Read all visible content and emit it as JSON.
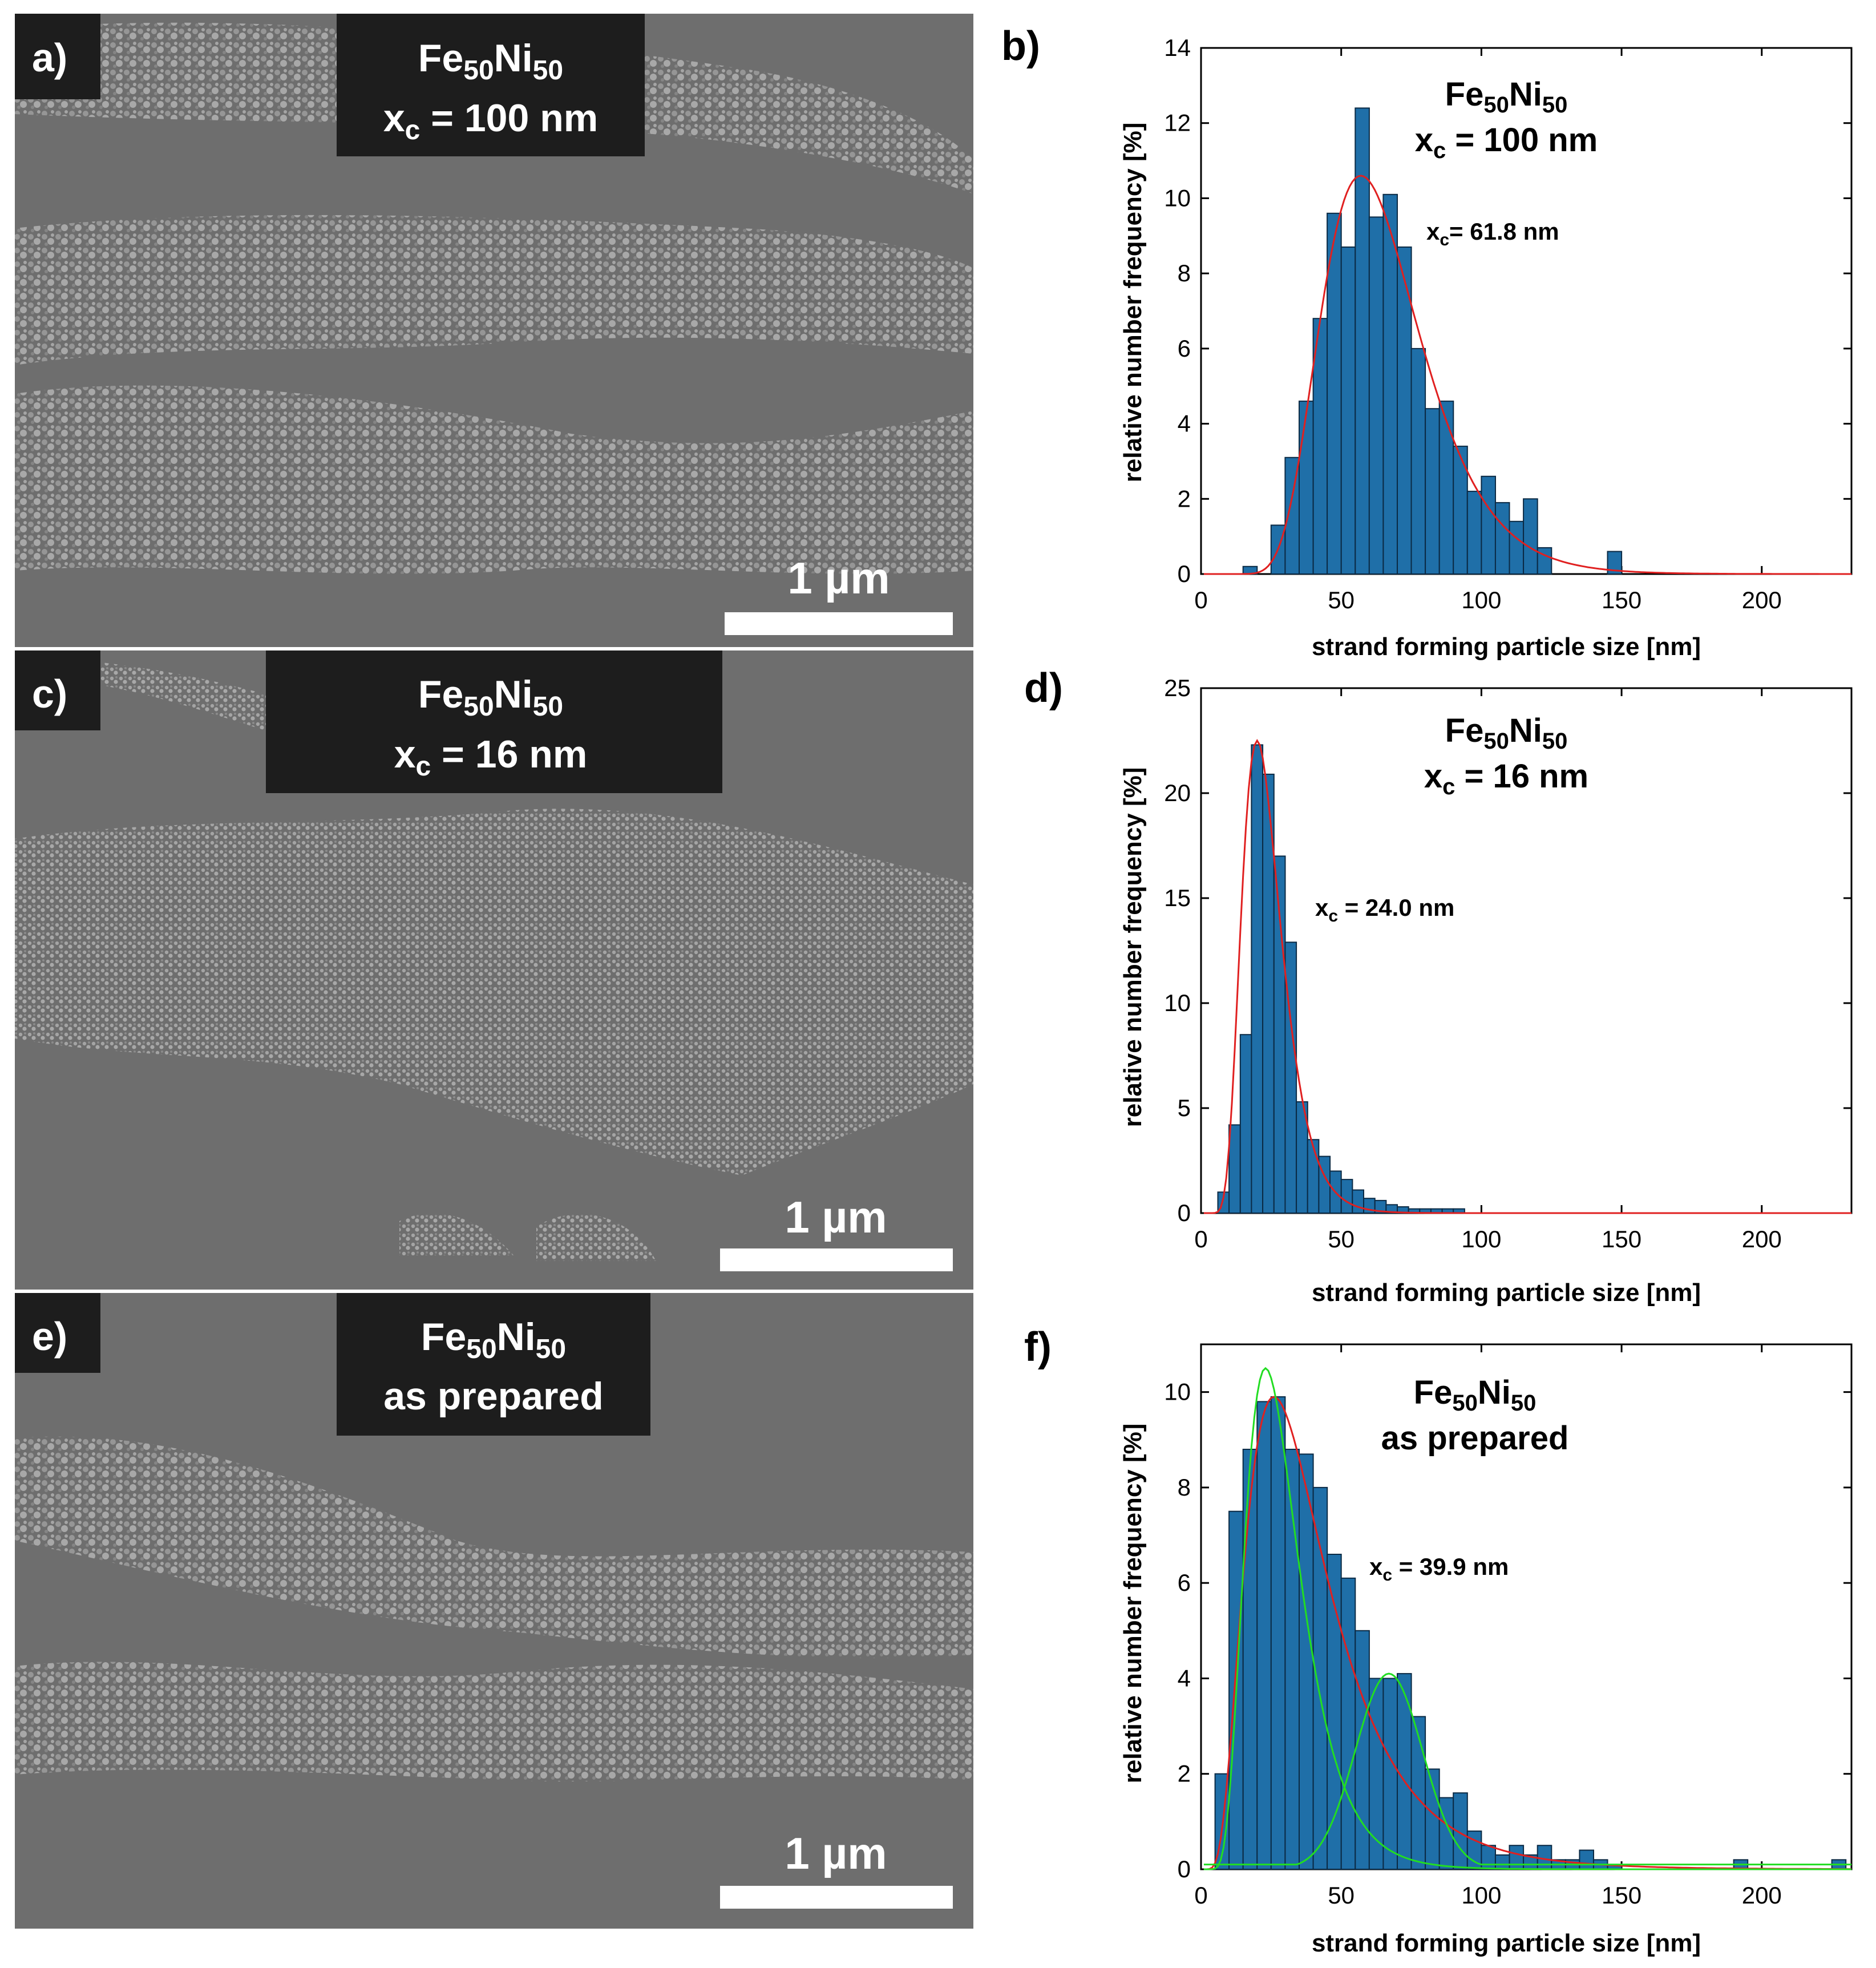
{
  "sem_panels": [
    {
      "letter": "a)",
      "material": "Fe",
      "sub1": "50",
      "element2": "Ni",
      "sub2": "50",
      "line2_var": "x",
      "line2_sub": "c",
      "line2_rest": " = 100 nm",
      "scale_bar": "1 µm"
    },
    {
      "letter": "c)",
      "material": "Fe",
      "sub1": "50",
      "element2": "Ni",
      "sub2": "50",
      "line2_var": "x",
      "line2_sub": "c",
      "line2_rest": " = 16 nm",
      "scale_bar": "1 µm"
    },
    {
      "letter": "e)",
      "material": "Fe",
      "sub1": "50",
      "element2": "Ni",
      "sub2": "50",
      "line2_text": "as prepared",
      "scale_bar": "1 µm"
    }
  ],
  "chart_data": [
    {
      "letter": "b)",
      "type": "bar",
      "title_el1": "Fe",
      "title_sub1": "50",
      "title_el2": "Ni",
      "title_sub2": "50",
      "title_line2_var": "x",
      "title_line2_sub": "c",
      "title_line2_rest": " = 100 nm",
      "annotation_var": "x",
      "annotation_sub": "c",
      "annotation_rest": "= 61.8 nm",
      "xlabel": "strand forming particle size [nm]",
      "ylabel": "relative number frequency [%]",
      "xlim": [
        0,
        232
      ],
      "ylim": [
        0,
        14
      ],
      "xticks": [
        0,
        50,
        100,
        150,
        200
      ],
      "yticks": [
        0,
        2,
        4,
        6,
        8,
        10,
        12,
        14
      ],
      "bin_width": 5,
      "bin_centers": [
        17.5,
        27.5,
        32.5,
        37.5,
        42.5,
        47.5,
        52.5,
        57.5,
        62.5,
        67.5,
        72.5,
        77.5,
        82.5,
        87.5,
        92.5,
        97.5,
        102.5,
        107.5,
        112.5,
        117.5,
        122.5,
        147.5
      ],
      "values": [
        0.2,
        1.3,
        3.1,
        4.6,
        6.8,
        9.6,
        8.7,
        12.4,
        9.5,
        10.1,
        8.7,
        6.0,
        4.4,
        4.6,
        3.4,
        2.2,
        2.6,
        1.9,
        1.4,
        2.0,
        0.7,
        0.6
      ],
      "fit_curves": [
        {
          "color": "#e02020",
          "kind": "lognormal",
          "mode": 57,
          "sigma": 0.31,
          "peak": 10.6
        }
      ]
    },
    {
      "letter": "d)",
      "type": "bar",
      "title_el1": "Fe",
      "title_sub1": "50",
      "title_el2": "Ni",
      "title_sub2": "50",
      "title_line2_var": "x",
      "title_line2_sub": "c",
      "title_line2_rest": " = 16 nm",
      "annotation_var": "x",
      "annotation_sub": "c",
      "annotation_rest": " = 24.0 nm",
      "xlabel": "strand forming particle size [nm]",
      "ylabel": "relative number frequency [%]",
      "xlim": [
        0,
        232
      ],
      "ylim": [
        0,
        25
      ],
      "xticks": [
        0,
        50,
        100,
        150,
        200
      ],
      "yticks": [
        0,
        5,
        10,
        15,
        20,
        25
      ],
      "bin_width": 4,
      "bin_centers": [
        8,
        12,
        16,
        20,
        24,
        28,
        32,
        36,
        40,
        44,
        48,
        52,
        56,
        60,
        64,
        68,
        72,
        76,
        80,
        84,
        88,
        92
      ],
      "values": [
        1.0,
        4.2,
        8.5,
        22.3,
        20.9,
        17.0,
        12.9,
        5.3,
        3.5,
        2.7,
        2.0,
        1.6,
        1.1,
        0.7,
        0.6,
        0.4,
        0.3,
        0.2,
        0.2,
        0.2,
        0.2,
        0.2
      ],
      "fit_curves": [
        {
          "color": "#e02020",
          "kind": "lognormal",
          "mode": 20,
          "sigma": 0.35,
          "peak": 22.5
        }
      ]
    },
    {
      "letter": "f)",
      "type": "bar",
      "title_el1": "Fe",
      "title_sub1": "50",
      "title_el2": "Ni",
      "title_sub2": "50",
      "title_line2_text": "as prepared",
      "annotation_var": "x",
      "annotation_sub": "c",
      "annotation_rest": " = 39.9 nm",
      "xlabel": "strand forming particle size [nm]",
      "ylabel": "relative number frequency [%]",
      "xlim": [
        0,
        232
      ],
      "ylim": [
        0,
        11
      ],
      "xticks": [
        0,
        50,
        100,
        150,
        200
      ],
      "yticks": [
        0,
        2,
        4,
        6,
        8,
        10
      ],
      "bin_width": 5,
      "bin_centers": [
        7.5,
        12.5,
        17.5,
        22.5,
        27.5,
        32.5,
        37.5,
        42.5,
        47.5,
        52.5,
        57.5,
        62.5,
        67.5,
        72.5,
        77.5,
        82.5,
        87.5,
        92.5,
        97.5,
        102.5,
        107.5,
        112.5,
        117.5,
        122.5,
        127.5,
        132.5,
        137.5,
        142.5,
        147.5,
        192.5,
        227.5
      ],
      "values": [
        2.0,
        7.5,
        8.8,
        9.8,
        9.9,
        8.8,
        8.7,
        8.0,
        6.6,
        6.1,
        5.0,
        4.0,
        4.0,
        4.1,
        3.2,
        2.1,
        1.5,
        1.6,
        0.8,
        0.5,
        0.3,
        0.5,
        0.3,
        0.5,
        0.2,
        0.2,
        0.4,
        0.2,
        0.1,
        0.2,
        0.2
      ],
      "fit_curves": [
        {
          "color": "#e02020",
          "kind": "lognormal",
          "mode": 26,
          "sigma": 0.56,
          "peak": 9.9
        },
        {
          "color": "#22dd22",
          "kind": "lognormal",
          "mode": 23,
          "sigma": 0.42,
          "peak": 10.5
        },
        {
          "color": "#22dd22",
          "kind": "gaussian",
          "mode": 67,
          "sigma": 12,
          "peak": 4.1,
          "baseline": 0.1
        }
      ]
    }
  ]
}
